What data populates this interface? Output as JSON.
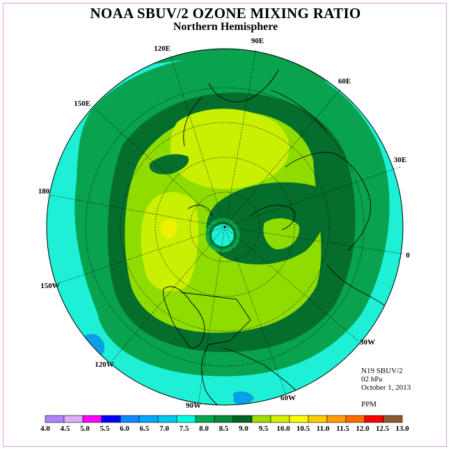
{
  "title": "NOAA SBUV/2 OZONE MIXING RATIO",
  "subtitle": "Northern Hemisphere",
  "info": {
    "instrument": "N19 SBUV/2",
    "level": "02 hPa",
    "date": "October 1, 2013",
    "units": "PPM"
  },
  "longitude_labels": [
    "90E",
    "60E",
    "30E",
    "0",
    "30W",
    "60W",
    "90W",
    "120W",
    "150W",
    "180",
    "150E",
    "120E"
  ],
  "colorbar": {
    "ticks": [
      "4.0",
      "4.5",
      "5.0",
      "5.5",
      "6.0",
      "6.5",
      "7.0",
      "7.5",
      "8.0",
      "8.5",
      "9.0",
      "9.5",
      "10.0",
      "10.5",
      "11.0",
      "11.5",
      "12.0",
      "12.5",
      "13.0"
    ],
    "colors": [
      "#b384ff",
      "#dcb0f5",
      "#ff00ff",
      "#0000ff",
      "#0a8cff",
      "#00a8ff",
      "#00c8f0",
      "#00ffdc",
      "#07a650",
      "#048a38",
      "#006427",
      "#9be000",
      "#d7f000",
      "#ffff00",
      "#ffcc00",
      "#ff9e00",
      "#ff6a00",
      "#ff0000",
      "#8c5a32"
    ]
  },
  "map_colors": {
    "band_7_5_8_0": "#1ef0d5",
    "band_8_0_8_5": "#09a24e",
    "band_8_5_9_0": "#066e2c",
    "band_9_0_9_5": "#8fdc00",
    "band_9_5_10_0": "#c8f000",
    "band_10_0_10_5": "#f0f000"
  }
}
